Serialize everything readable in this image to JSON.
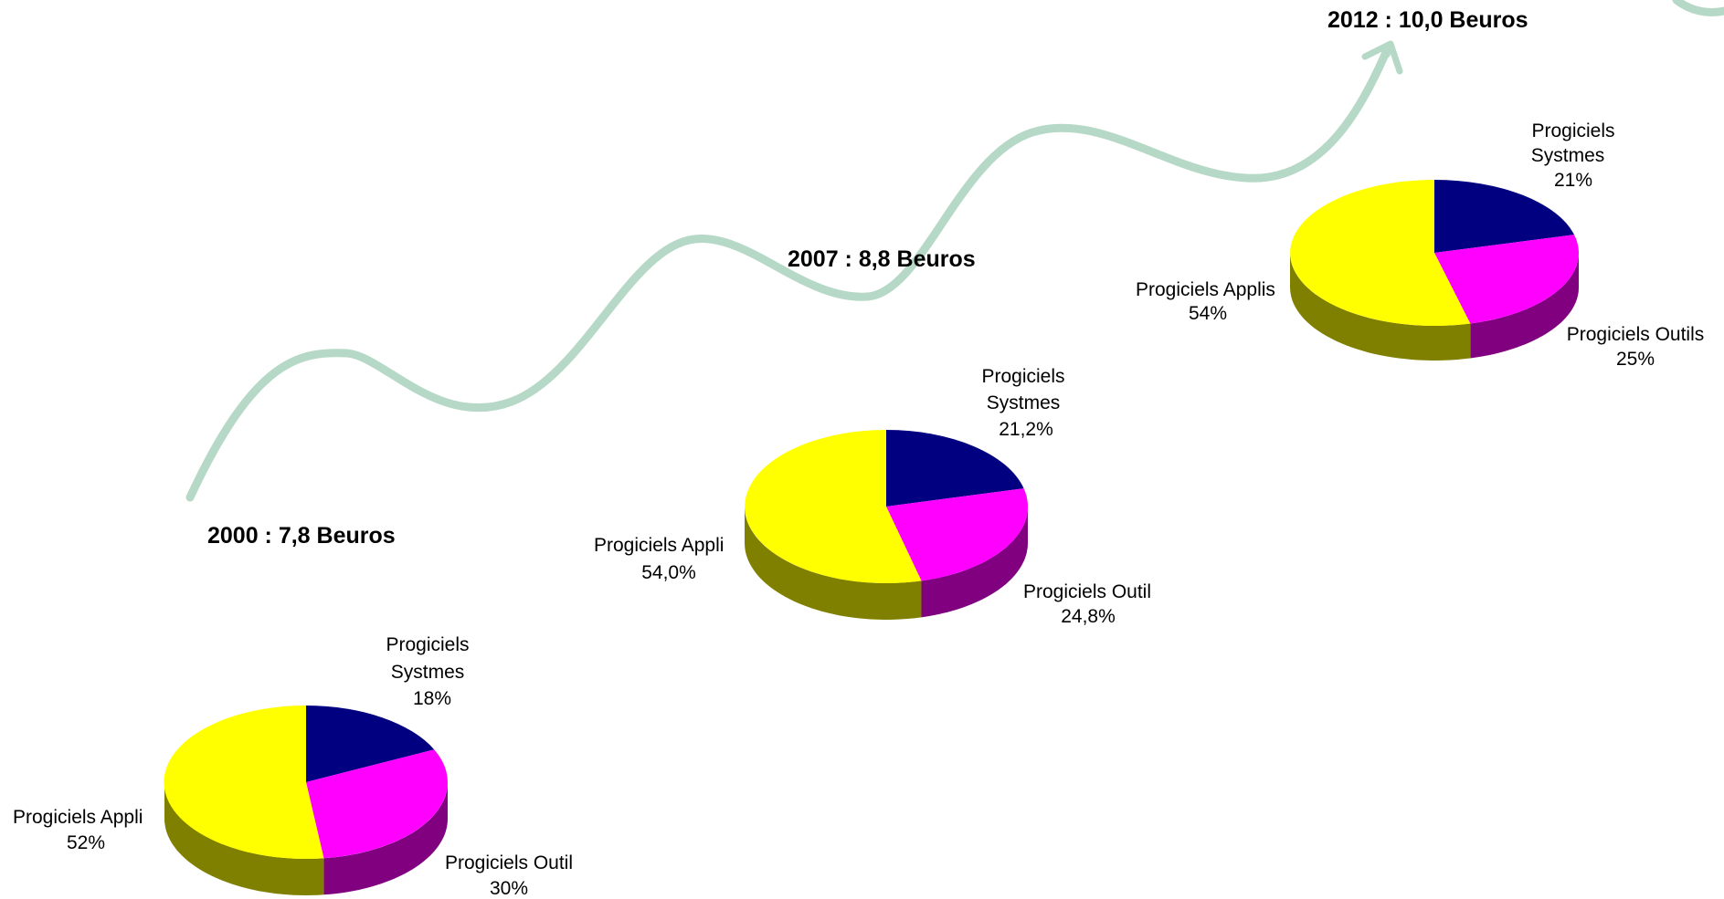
{
  "chart_data": [
    {
      "type": "pie",
      "title": "2000 : 7,8 Beuros",
      "slices": [
        {
          "label_lines": [
            "Progiciels",
            "Systmes"
          ],
          "value_label": "18%",
          "value": 18
        },
        {
          "label_lines": [
            "Progiciels Outil"
          ],
          "value_label": "30%",
          "value": 30
        },
        {
          "label_lines": [
            "Progiciels Appli"
          ],
          "value_label": "52%",
          "value": 52
        }
      ]
    },
    {
      "type": "pie",
      "title": "2007 : 8,8 Beuros",
      "slices": [
        {
          "label_lines": [
            "Progiciels",
            "Systmes"
          ],
          "value_label": "21,2%",
          "value": 21.2
        },
        {
          "label_lines": [
            "Progiciels Outil"
          ],
          "value_label": "24,8%",
          "value": 24.8
        },
        {
          "label_lines": [
            "Progiciels Appli"
          ],
          "value_label": "54,0%",
          "value": 54.0
        }
      ]
    },
    {
      "type": "pie",
      "title": "2012 : 10,0 Beuros",
      "slices": [
        {
          "label_lines": [
            "Progiciels",
            "Systmes"
          ],
          "value_label": "21%",
          "value": 21
        },
        {
          "label_lines": [
            "Progiciels Outils"
          ],
          "value_label": "25%",
          "value": 25
        },
        {
          "label_lines": [
            "Progiciels Applis"
          ],
          "value_label": "54%",
          "value": 54
        }
      ]
    }
  ],
  "colors": {
    "systemes_top": "#000080",
    "outils_top": "#ff00ff",
    "outils_side": "#800080",
    "applis_top": "#ffff00",
    "applis_side": "#808000",
    "trend_arrow": "#b6d8c6"
  }
}
